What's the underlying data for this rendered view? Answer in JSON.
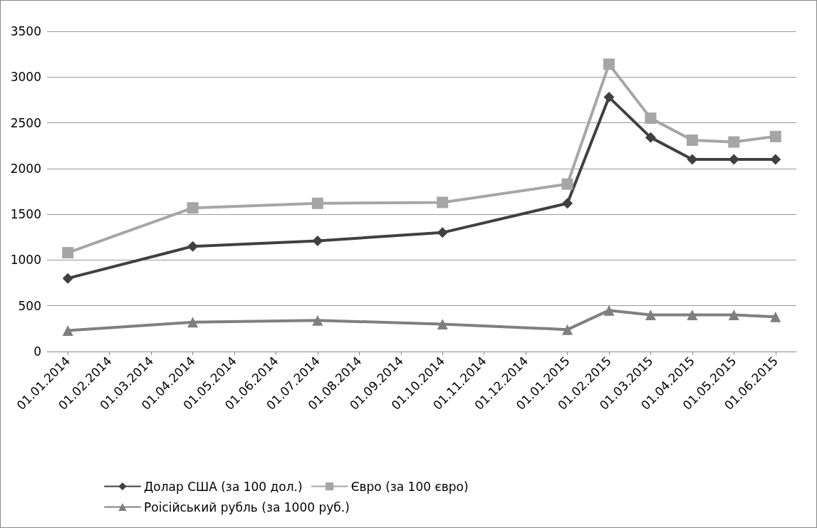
{
  "chart_data": {
    "type": "line",
    "categories": [
      "01.01.2014",
      "01.02.2014",
      "01.03.2014",
      "01.04.2014",
      "01.05.2014",
      "01.06.2014",
      "01.07.2014",
      "01.08.2014",
      "01.09.2014",
      "01.10.2014",
      "01.11.2014",
      "01.12.2014",
      "01.01.2015",
      "01.02.2015",
      "01.03.2015",
      "01.04.2015",
      "01.05.2015",
      "01.06.2015"
    ],
    "series": [
      {
        "name": "Долар США (за 100 дол.)",
        "color": "#404040",
        "marker": "diamond",
        "values": [
          800,
          null,
          null,
          1150,
          null,
          null,
          1210,
          null,
          null,
          1300,
          null,
          null,
          1620,
          2780,
          2340,
          2100,
          2100,
          2100
        ]
      },
      {
        "name": "Євро (за 100 євро)",
        "color": "#a6a6a6",
        "marker": "square",
        "values": [
          1080,
          null,
          null,
          1570,
          null,
          null,
          1620,
          null,
          null,
          1630,
          null,
          null,
          1830,
          3140,
          2550,
          2310,
          2290,
          2350
        ]
      },
      {
        "name": "Роісійський рубль (за 1000 руб.)",
        "color": "#7f7f7f",
        "marker": "triangle",
        "values": [
          230,
          null,
          null,
          320,
          null,
          null,
          340,
          null,
          null,
          300,
          null,
          null,
          240,
          450,
          400,
          400,
          400,
          380
        ]
      }
    ],
    "ylim": [
      0,
      3500
    ],
    "yticks": [
      0,
      500,
      1000,
      1500,
      2000,
      2500,
      3000,
      3500
    ],
    "grid": "y",
    "legend": "bottom"
  }
}
